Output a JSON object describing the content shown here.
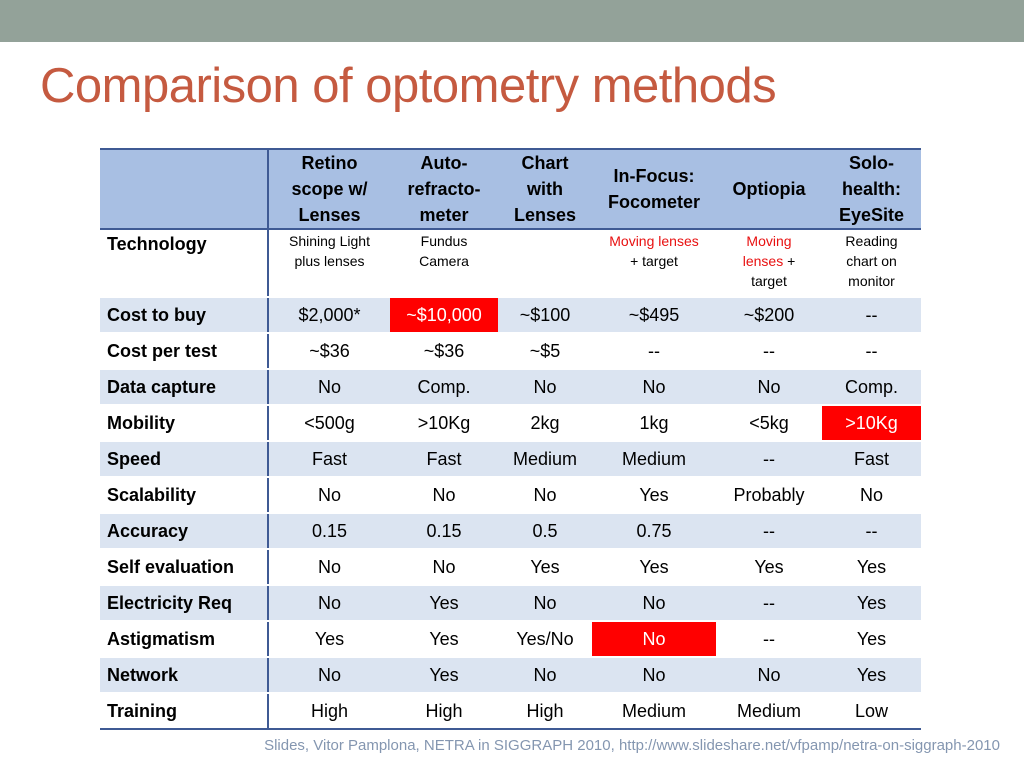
{
  "slide": {
    "title": "Comparison of optometry methods",
    "footer": "Slides, Vitor Pamplona, NETRA in SIGGRAPH 2010, http://www.slideshare.net/vfpamp/netra-on-siggraph-2010"
  },
  "colors": {
    "top_bar": "#93a299",
    "title": "#c55a40",
    "header_fill": "#a8bfe3",
    "row_shade": "#dbe4f1",
    "rule": "#3f5a94",
    "highlight": "#ff0000",
    "emphasis_text": "#e81010"
  },
  "table": {
    "columns": [
      {
        "lines": [
          "Retino",
          "scope w/",
          "Lenses"
        ]
      },
      {
        "lines": [
          "Auto-",
          "refracto-",
          "meter"
        ]
      },
      {
        "lines": [
          "Chart",
          "with",
          "Lenses"
        ]
      },
      {
        "lines": [
          "In-Focus:",
          "Focometer"
        ]
      },
      {
        "lines": [
          "Optiopia"
        ]
      },
      {
        "lines": [
          "Solo-",
          "health:",
          "EyeSite"
        ]
      }
    ],
    "technology": {
      "label": "Technology",
      "cells": [
        {
          "lines": [
            "Shining Light",
            "plus lenses"
          ]
        },
        {
          "lines": [
            "Fundus",
            "Camera"
          ]
        },
        {
          "lines": []
        },
        {
          "a": "Moving lenses",
          "b": "+ target"
        },
        {
          "a": "Moving",
          "b": "lenses",
          "c": "+",
          "d": "target"
        },
        {
          "lines": [
            "Reading",
            "chart on",
            "monitor"
          ]
        }
      ]
    },
    "rows": [
      {
        "label": "Cost to buy",
        "values": [
          "$2,000*",
          "~$10,000",
          "~$100",
          "~$495",
          "~$200",
          "--"
        ]
      },
      {
        "label": "Cost per test",
        "values": [
          "~$36",
          "~$36",
          "~$5",
          "--",
          "--",
          "--"
        ]
      },
      {
        "label": "Data capture",
        "values": [
          "No",
          "Comp.",
          "No",
          "No",
          "No",
          "Comp."
        ]
      },
      {
        "label": "Mobility",
        "values": [
          "<500g",
          ">10Kg",
          "2kg",
          "1kg",
          "<5kg",
          ">10Kg"
        ]
      },
      {
        "label": "Speed",
        "values": [
          "Fast",
          "Fast",
          "Medium",
          "Medium",
          "--",
          "Fast"
        ]
      },
      {
        "label": "Scalability",
        "values": [
          "No",
          "No",
          "No",
          "Yes",
          "Probably",
          "No"
        ]
      },
      {
        "label": "Accuracy",
        "values": [
          "0.15",
          "0.15",
          "0.5",
          "0.75",
          "--",
          "--"
        ]
      },
      {
        "label": "Self evaluation",
        "values": [
          "No",
          "No",
          "Yes",
          "Yes",
          "Yes",
          "Yes"
        ]
      },
      {
        "label": "Electricity Req",
        "values": [
          "No",
          "Yes",
          "No",
          "No",
          "--",
          "Yes"
        ]
      },
      {
        "label": "Astigmatism",
        "values": [
          "Yes",
          "Yes",
          "Yes/No",
          "No",
          "--",
          "Yes"
        ]
      },
      {
        "label": "Network",
        "values": [
          "No",
          "Yes",
          "No",
          "No",
          "No",
          "Yes"
        ]
      },
      {
        "label": "Training",
        "values": [
          "High",
          "High",
          "High",
          "Medium",
          "Medium",
          "Low"
        ]
      }
    ]
  }
}
